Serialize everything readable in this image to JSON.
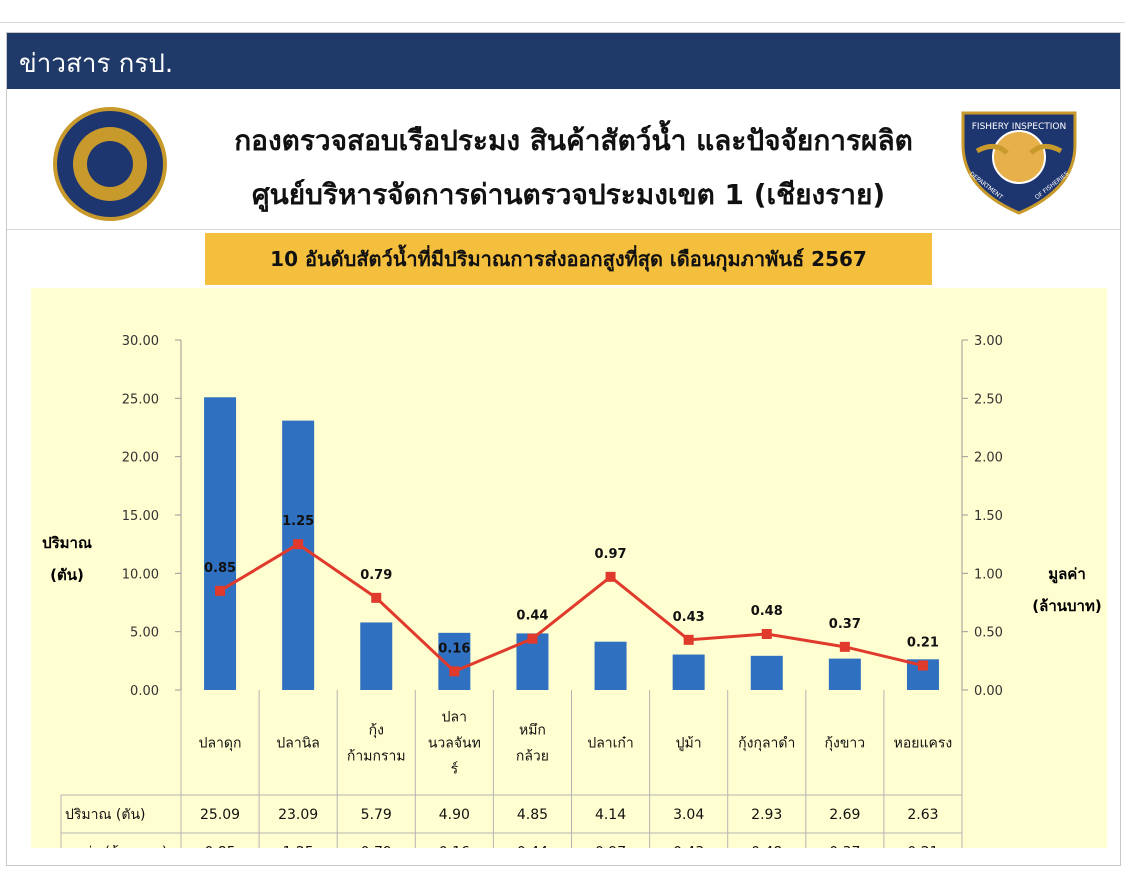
{
  "banner": {
    "title": "ข่าวสาร กรป."
  },
  "header": {
    "line1": "กองตรวจสอบเรือประมง สินค้าสัตว์น้ำ และปัจจัยการผลิต",
    "line2": "ศูนย์บริหารจัดการด่านตรวจประมงเขต 1 (เชียงราย)",
    "logo_left": "department-seal-icon",
    "logo_right": "fishery-inspection-badge-icon",
    "logo_right_text_top": "FISHERY INSPECTION",
    "logo_right_text_left": "DEPARTMENT",
    "logo_right_text_right": "OF FISHERIES"
  },
  "chart_data": {
    "type": "bar",
    "title": "10 อันดับสัตว์น้ำที่มีปริมาณการส่งออกสูงที่สุด เดือนกุมภาพันธ์ 2567",
    "categories": [
      [
        "ปลาดุก"
      ],
      [
        "ปลานิล"
      ],
      [
        "กุ้ง",
        "ก้ามกราม"
      ],
      [
        "ปลา",
        "นวลจันท",
        "ร์"
      ],
      [
        "หมึก",
        "กล้วย"
      ],
      [
        "ปลาเก๋า"
      ],
      [
        "ปูม้า"
      ],
      [
        "กุ้งกุลาดำ"
      ],
      [
        "กุ้งขาว"
      ],
      [
        "หอยแครง"
      ]
    ],
    "left_axis": {
      "label": [
        "ปริมาณ",
        "(ตัน)"
      ],
      "ylim": [
        0,
        30
      ],
      "ticks": [
        "0.00",
        "5.00",
        "10.00",
        "15.00",
        "20.00",
        "25.00",
        "30.00"
      ]
    },
    "right_axis": {
      "label": [
        "มูลค่า",
        "(ล้านบาท)"
      ],
      "ylim": [
        0,
        3
      ],
      "ticks": [
        "0.00",
        "0.50",
        "1.00",
        "1.50",
        "2.00",
        "2.50",
        "3.00"
      ]
    },
    "series": [
      {
        "name": "ปริมาณ (ตัน)",
        "type": "bar",
        "axis": "left",
        "color": "#3070c0",
        "values": [
          25.09,
          23.09,
          5.79,
          4.9,
          4.85,
          4.14,
          3.04,
          2.93,
          2.69,
          2.63
        ],
        "labels": [
          "25.09",
          "23.09",
          "5.79",
          "4.90",
          "4.85",
          "4.14",
          "3.04",
          "2.93",
          "2.69",
          "2.63"
        ]
      },
      {
        "name": "มูลค่า (ล้านบาท)",
        "type": "line",
        "axis": "right",
        "color": "#e03a2c",
        "values": [
          0.85,
          1.25,
          0.79,
          0.16,
          0.44,
          0.97,
          0.43,
          0.48,
          0.37,
          0.21
        ],
        "labels": [
          "0.85",
          "1.25",
          "0.79",
          "0.16",
          "0.44",
          "0.97",
          "0.43",
          "0.48",
          "0.37",
          "0.21"
        ]
      }
    ],
    "grid": false,
    "legend": "data table below chart"
  }
}
